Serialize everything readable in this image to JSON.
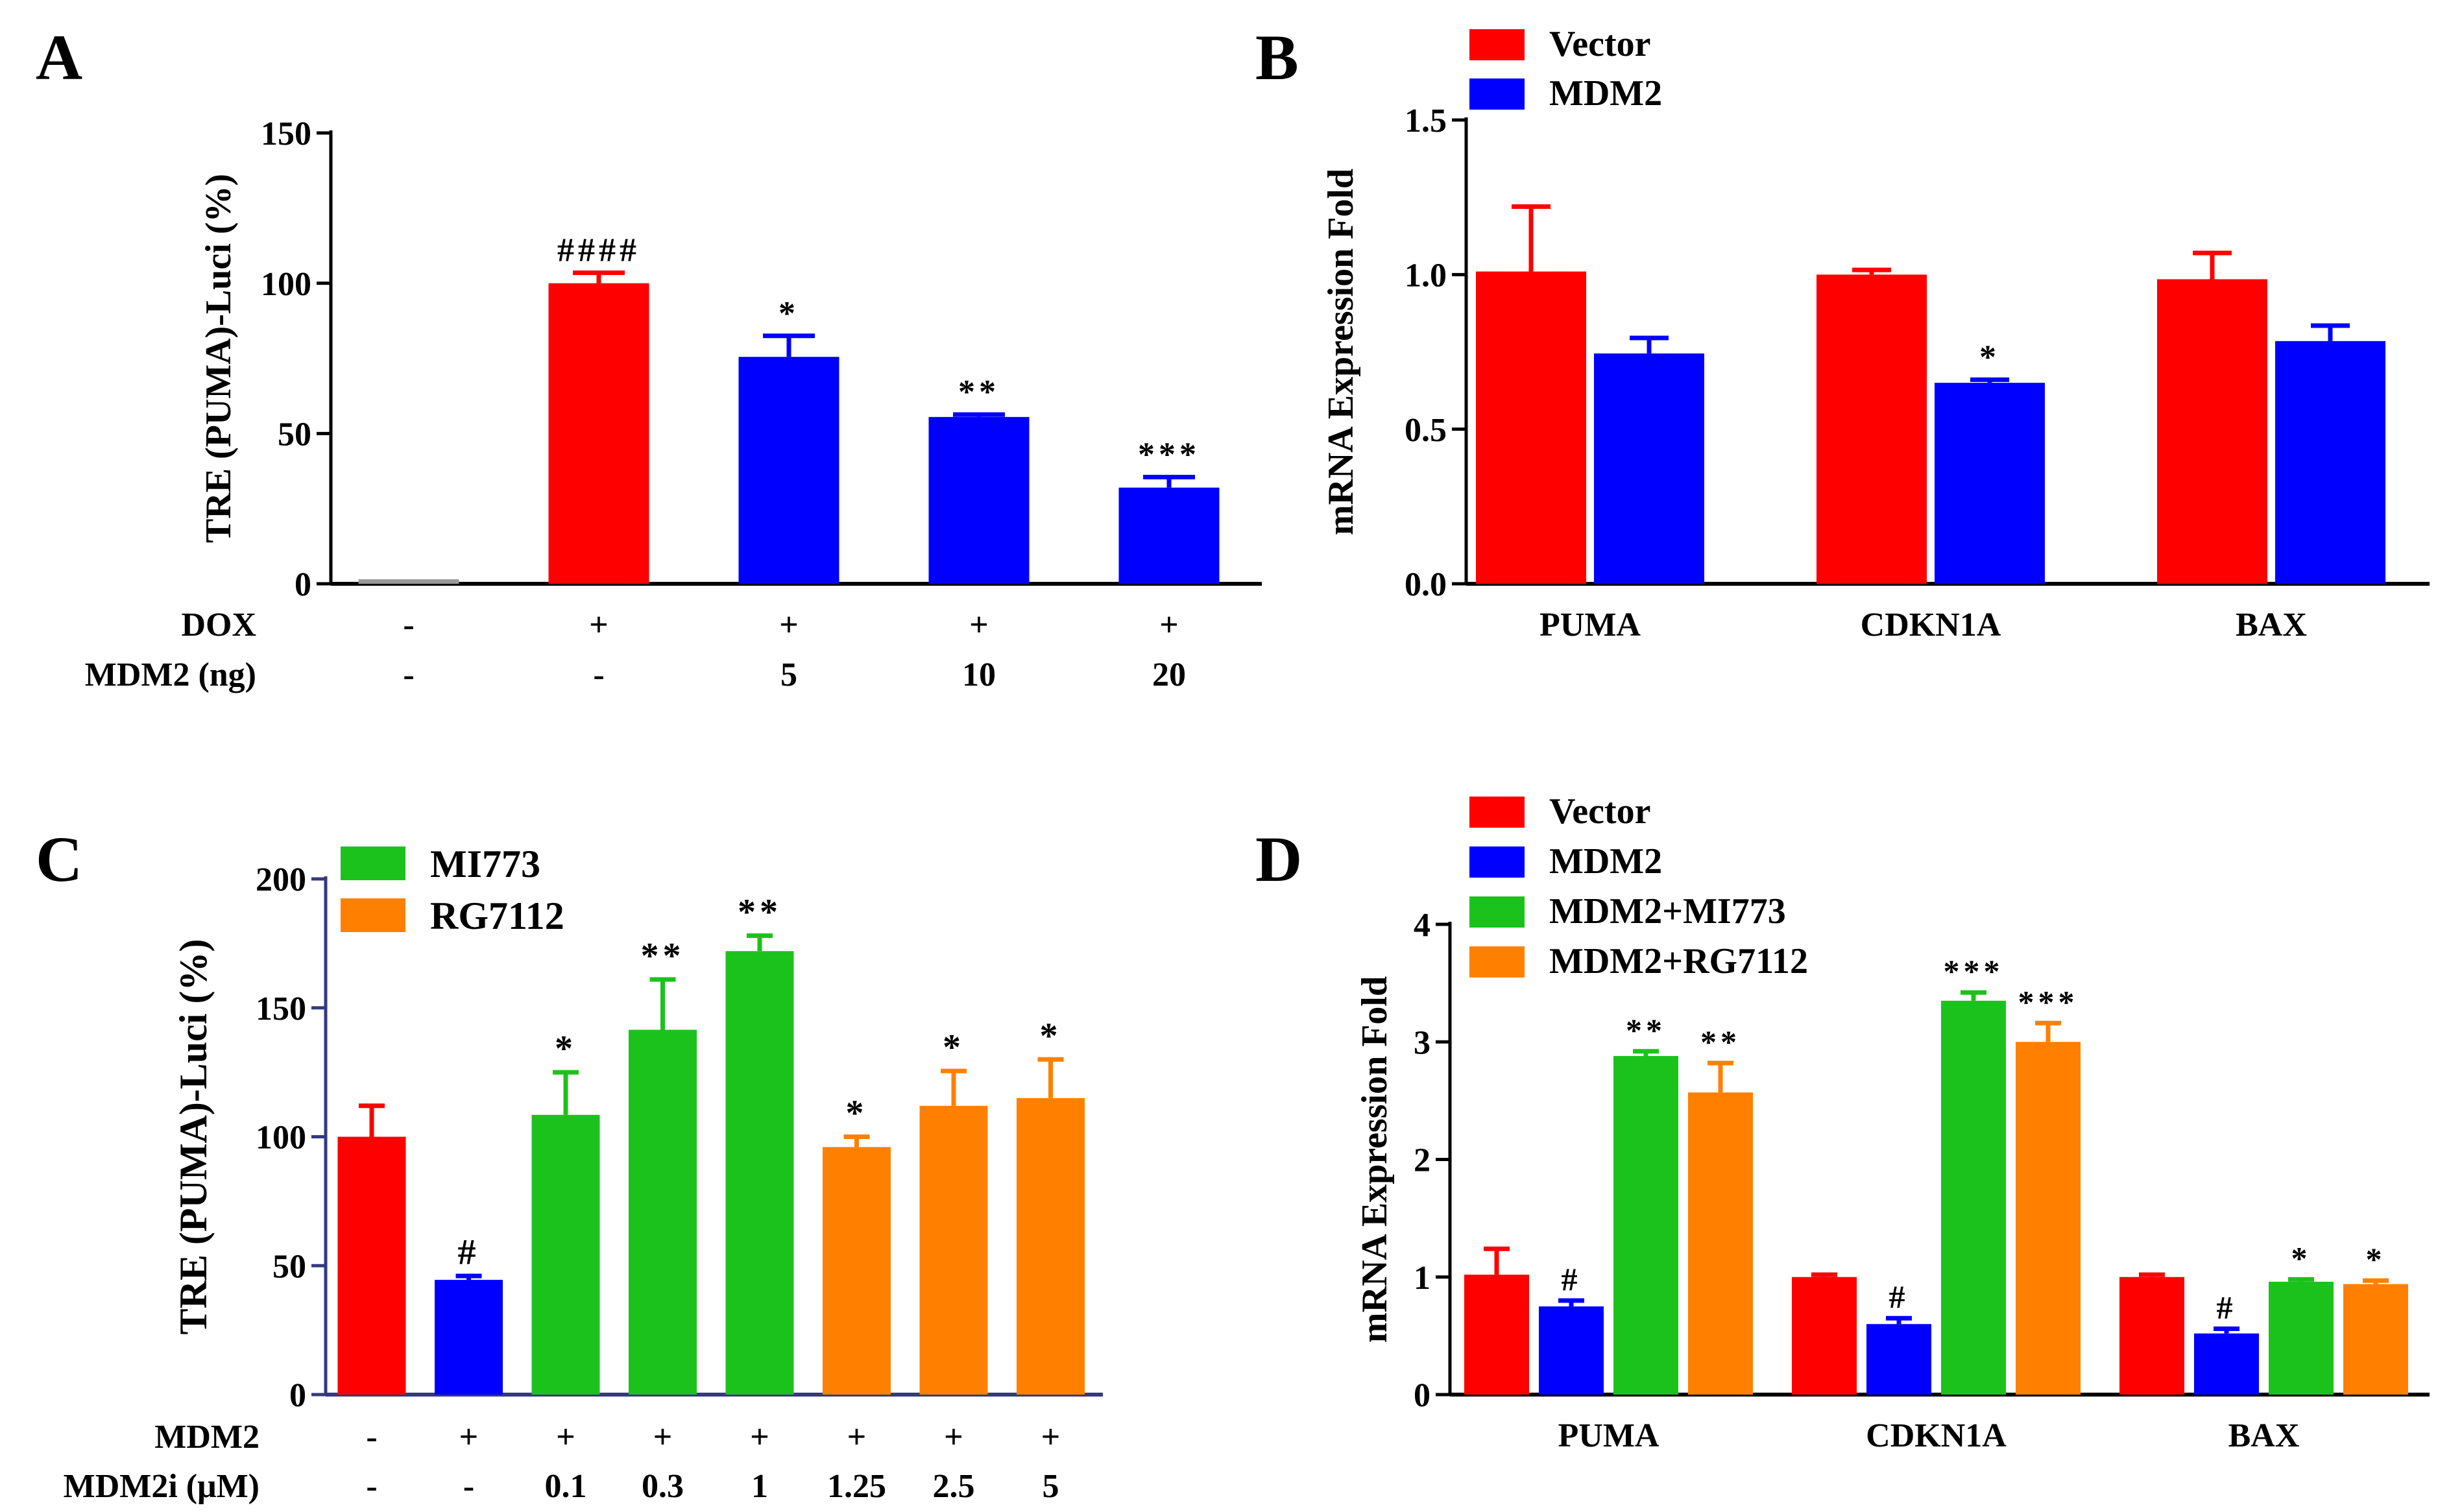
{
  "colors": {
    "red": "#ff0000",
    "blue": "#0000ff",
    "green": "#1cc21c",
    "orange": "#ff8000",
    "gray": "#999999",
    "star": "#4a4a6a",
    "axis_c": "#333a80"
  },
  "chart_data": [
    {
      "panel": "A",
      "type": "bar",
      "ylabel": "TRE (PUMA)-Luci (%)",
      "ylim": [
        0,
        150
      ],
      "yticks": [
        0,
        50,
        100,
        150
      ],
      "row_labels": [
        "DOX",
        "MDM2 (ng)"
      ],
      "rows": [
        [
          "-",
          "+",
          "+",
          "+",
          "+"
        ],
        [
          "-",
          "-",
          "5",
          "10",
          "20"
        ]
      ],
      "values": [
        1.5,
        100,
        75.5,
        55.5,
        32
      ],
      "errors": [
        0,
        3.5,
        7,
        0.8,
        3.5
      ],
      "bar_colors": [
        "gray",
        "red",
        "blue",
        "blue",
        "blue"
      ],
      "annotations": [
        "",
        "####",
        "*",
        "**",
        "***"
      ]
    },
    {
      "panel": "B",
      "type": "bar",
      "ylabel": "mRNA Expression Fold",
      "ylim": [
        0,
        1.5
      ],
      "yticks": [
        "0.0",
        "0.5",
        "1.0",
        "1.5"
      ],
      "categories": [
        "PUMA",
        "CDKN1A",
        "BAX"
      ],
      "series": [
        {
          "name": "Vector",
          "color": "red",
          "values": [
            1.01,
            1.0,
            0.985
          ],
          "errors": [
            0.21,
            0.015,
            0.085
          ],
          "annotations": [
            "",
            "",
            ""
          ]
        },
        {
          "name": "MDM2",
          "color": "blue",
          "values": [
            0.745,
            0.65,
            0.785
          ],
          "errors": [
            0.05,
            0.01,
            0.05
          ],
          "annotations": [
            "",
            "*",
            ""
          ]
        }
      ],
      "legend": "top-left"
    },
    {
      "panel": "C",
      "type": "bar",
      "ylabel": "TRE (PUMA)-Luci (%)",
      "ylim": [
        0,
        200
      ],
      "yticks": [
        0,
        50,
        100,
        150,
        200
      ],
      "row_labels": [
        "MDM2",
        "MDM2i (μM)"
      ],
      "rows": [
        [
          "-",
          "+",
          "+",
          "+",
          "+",
          "+",
          "+",
          "+"
        ],
        [
          "-",
          "-",
          "0.1",
          "0.3",
          "1",
          "1.25",
          "2.5",
          "5"
        ]
      ],
      "values": [
        100,
        44.5,
        108.5,
        141.5,
        172,
        96,
        112,
        115
      ],
      "errors": [
        12,
        1.5,
        16.5,
        19.5,
        6,
        4,
        13.5,
        15
      ],
      "bar_colors": [
        "red",
        "blue",
        "green",
        "green",
        "green",
        "orange",
        "orange",
        "orange"
      ],
      "annotations": [
        "",
        "#",
        "*",
        "**",
        "**",
        "*",
        "*",
        "*"
      ],
      "legend_entries": [
        {
          "name": "MI773",
          "color": "green"
        },
        {
          "name": "RG7112",
          "color": "orange"
        }
      ],
      "legend": "top-left"
    },
    {
      "panel": "D",
      "type": "bar",
      "ylabel": "mRNA Expression Fold",
      "ylim": [
        0,
        4
      ],
      "yticks": [
        0,
        1,
        2,
        3,
        4
      ],
      "categories": [
        "PUMA",
        "CDKN1A",
        "BAX"
      ],
      "series": [
        {
          "name": "Vector",
          "color": "red",
          "values": [
            1.02,
            1.0,
            1.0
          ],
          "errors": [
            0.22,
            0.02,
            0.02
          ],
          "annotations": [
            "",
            "",
            ""
          ]
        },
        {
          "name": "MDM2",
          "color": "blue",
          "values": [
            0.75,
            0.6,
            0.52
          ],
          "errors": [
            0.05,
            0.05,
            0.04
          ],
          "annotations": [
            "#",
            "#",
            "#"
          ]
        },
        {
          "name": "MDM2+MI773",
          "color": "green",
          "values": [
            2.88,
            3.35,
            0.96
          ],
          "errors": [
            0.04,
            0.07,
            0.02
          ],
          "annotations": [
            "**",
            "***",
            "*"
          ]
        },
        {
          "name": "MDM2+RG7112",
          "color": "orange",
          "values": [
            2.57,
            3.0,
            0.94
          ],
          "errors": [
            0.25,
            0.16,
            0.03
          ],
          "annotations": [
            "**",
            "***",
            "*"
          ]
        }
      ],
      "legend": "top-left"
    }
  ]
}
